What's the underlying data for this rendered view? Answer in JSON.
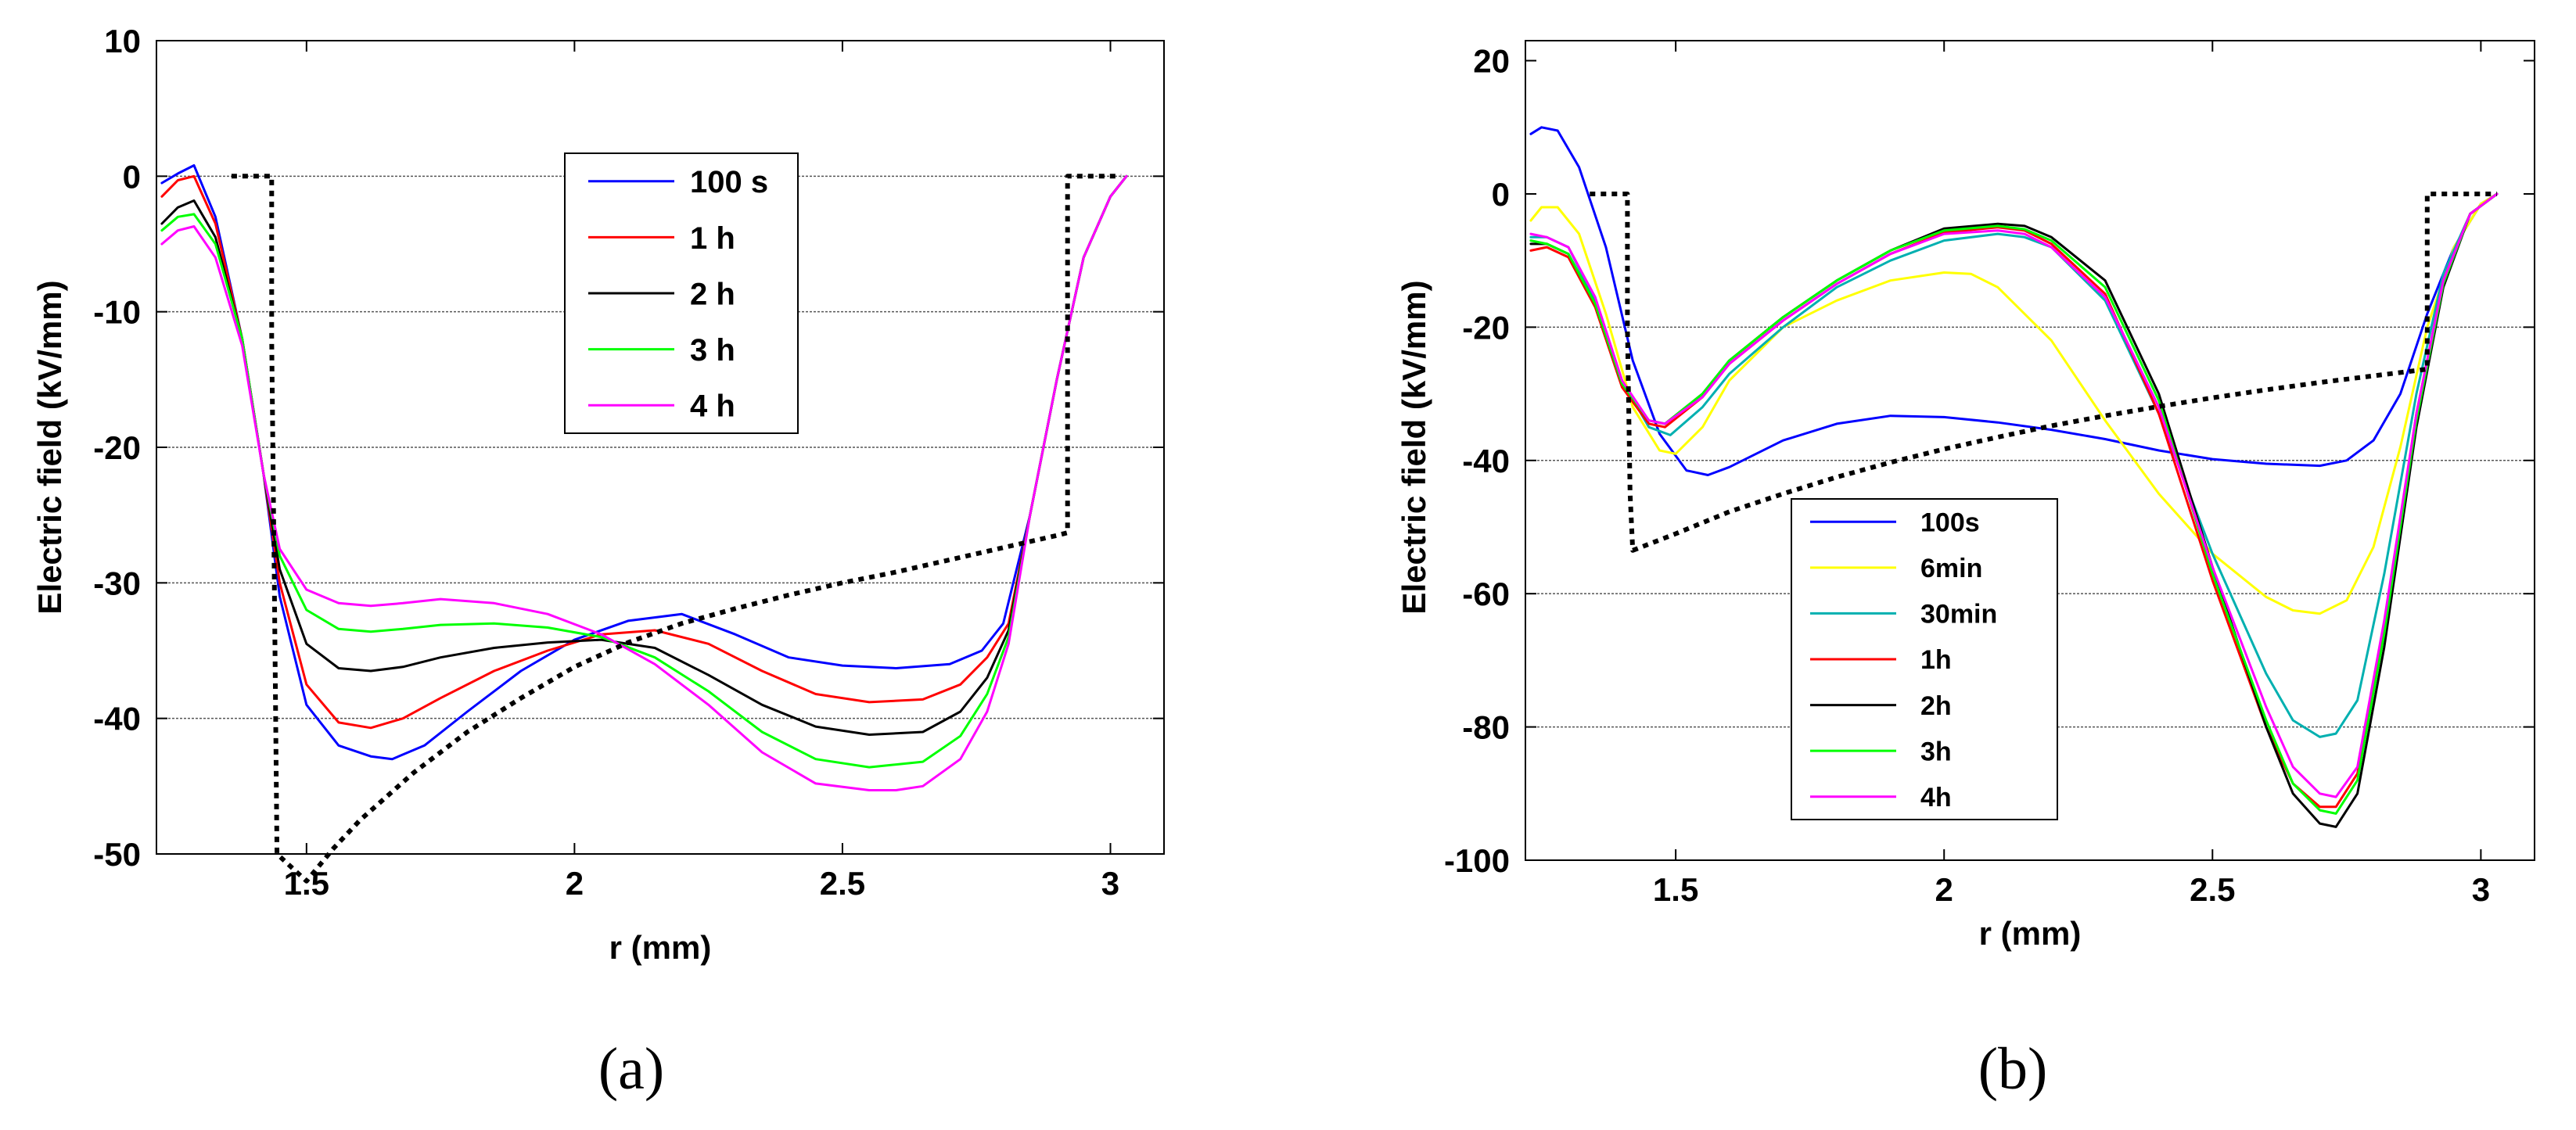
{
  "chart_data": [
    {
      "type": "line",
      "panel_label": "(a)",
      "xlabel": "r (mm)",
      "ylabel": "Electric field (kV/mm)",
      "xlim": [
        1.22,
        3.1
      ],
      "ylim": [
        -50,
        10
      ],
      "xticks": [
        1.5,
        2,
        2.5,
        3
      ],
      "xticklabels": [
        "1.5",
        "2",
        "2.5",
        "3"
      ],
      "yticks": [
        10,
        0,
        -10,
        -20,
        -30,
        -40,
        -50
      ],
      "yticklabels": [
        "10",
        "0",
        "-10",
        "-20",
        "-30",
        "-40",
        "-50"
      ],
      "gridlines_y": [
        0,
        -10,
        -20,
        -30,
        -40
      ],
      "legend_position": "top-center",
      "series": [
        {
          "name": "100 s",
          "color": "#0000ff",
          "x": [
            1.23,
            1.26,
            1.29,
            1.33,
            1.38,
            1.42,
            1.45,
            1.5,
            1.56,
            1.62,
            1.66,
            1.72,
            1.8,
            1.9,
            2.0,
            2.1,
            2.2,
            2.3,
            2.4,
            2.5,
            2.6,
            2.7,
            2.76,
            2.8,
            2.85,
            2.9,
            2.95,
            3.0,
            3.03
          ],
          "y": [
            -0.5,
            0.2,
            0.8,
            -3,
            -12,
            -22,
            -31,
            -39,
            -42,
            -42.8,
            -43,
            -42,
            -39.5,
            -36.5,
            -34.2,
            -32.8,
            -32.3,
            -33.8,
            -35.5,
            -36.1,
            -36.3,
            -36,
            -35,
            -33,
            -25,
            -15,
            -6,
            -1.5,
            0
          ]
        },
        {
          "name": "1 h",
          "color": "#ff0000",
          "x": [
            1.23,
            1.26,
            1.29,
            1.33,
            1.38,
            1.42,
            1.45,
            1.5,
            1.56,
            1.62,
            1.68,
            1.75,
            1.85,
            1.95,
            2.05,
            2.15,
            2.25,
            2.35,
            2.45,
            2.55,
            2.65,
            2.72,
            2.77,
            2.81,
            2.85,
            2.9,
            2.95,
            3.0,
            3.03
          ],
          "y": [
            -1.5,
            -0.3,
            0,
            -3.5,
            -12,
            -22,
            -30,
            -37.5,
            -40.3,
            -40.7,
            -40,
            -38.5,
            -36.5,
            -35,
            -33.8,
            -33.5,
            -34.5,
            -36.5,
            -38.2,
            -38.8,
            -38.6,
            -37.5,
            -35.5,
            -33,
            -25,
            -15,
            -6,
            -1.5,
            0
          ]
        },
        {
          "name": "2 h",
          "color": "#000000",
          "x": [
            1.23,
            1.26,
            1.29,
            1.33,
            1.38,
            1.42,
            1.45,
            1.5,
            1.56,
            1.62,
            1.68,
            1.75,
            1.85,
            1.95,
            2.05,
            2.15,
            2.25,
            2.35,
            2.45,
            2.55,
            2.65,
            2.72,
            2.77,
            2.81,
            2.85,
            2.9,
            2.95,
            3.0,
            3.03
          ],
          "y": [
            -3.5,
            -2.3,
            -1.8,
            -4.5,
            -12,
            -22,
            -29,
            -34.5,
            -36.3,
            -36.5,
            -36.2,
            -35.5,
            -34.8,
            -34.4,
            -34.2,
            -34.8,
            -36.8,
            -39,
            -40.6,
            -41.2,
            -41,
            -39.5,
            -37,
            -33.5,
            -25,
            -15,
            -6,
            -1.5,
            0
          ]
        },
        {
          "name": "3 h",
          "color": "#00ff00",
          "x": [
            1.23,
            1.26,
            1.29,
            1.33,
            1.38,
            1.42,
            1.45,
            1.5,
            1.56,
            1.62,
            1.68,
            1.75,
            1.85,
            1.95,
            2.05,
            2.15,
            2.25,
            2.35,
            2.45,
            2.55,
            2.65,
            2.72,
            2.77,
            2.81,
            2.85,
            2.9,
            2.95,
            3.0,
            3.03
          ],
          "y": [
            -4,
            -3,
            -2.8,
            -5,
            -12,
            -22,
            -28,
            -32,
            -33.4,
            -33.6,
            -33.4,
            -33.1,
            -33,
            -33.3,
            -34,
            -35.5,
            -38,
            -41,
            -43,
            -43.6,
            -43.2,
            -41.3,
            -38.2,
            -34,
            -25,
            -15,
            -6,
            -1.5,
            0
          ]
        },
        {
          "name": "4 h",
          "color": "#ff00ff",
          "x": [
            1.23,
            1.26,
            1.29,
            1.33,
            1.38,
            1.42,
            1.45,
            1.5,
            1.56,
            1.62,
            1.68,
            1.75,
            1.85,
            1.95,
            2.05,
            2.15,
            2.25,
            2.35,
            2.45,
            2.55,
            2.6,
            2.65,
            2.72,
            2.77,
            2.81,
            2.85,
            2.9,
            2.95,
            3.0,
            3.03
          ],
          "y": [
            -5,
            -4,
            -3.7,
            -6,
            -12.5,
            -22,
            -27.5,
            -30.5,
            -31.5,
            -31.7,
            -31.5,
            -31.2,
            -31.5,
            -32.3,
            -33.8,
            -36,
            -39,
            -42.5,
            -44.8,
            -45.3,
            -45.3,
            -45,
            -43,
            -39.5,
            -34.5,
            -25,
            -15,
            -6,
            -1.5,
            0
          ]
        },
        {
          "name": "",
          "color": "#000000",
          "dashed": true,
          "x": [
            1.36,
            1.435,
            1.435,
            1.44,
            1.445,
            1.5,
            1.55,
            1.6,
            1.7,
            1.8,
            1.9,
            2.0,
            2.1,
            2.2,
            2.3,
            2.4,
            2.5,
            2.6,
            2.7,
            2.8,
            2.9,
            2.92,
            2.92,
            2.96,
            3.02
          ],
          "y": [
            0,
            0,
            -12,
            -30,
            -50,
            -52,
            -49.6,
            -47.5,
            -44,
            -41,
            -38.5,
            -36.2,
            -34.4,
            -33,
            -31.9,
            -30.9,
            -30,
            -29.2,
            -28.3,
            -27.4,
            -26.5,
            -26.3,
            0,
            0,
            0
          ]
        }
      ]
    },
    {
      "type": "line",
      "panel_label": "(b)",
      "xlabel": "r (mm)",
      "ylabel": "Electric field (kV/mm)",
      "xlim": [
        1.22,
        3.1
      ],
      "ylim": [
        -100,
        23
      ],
      "xticks": [
        1.5,
        2,
        2.5,
        3
      ],
      "xticklabels": [
        "1.5",
        "2",
        "2.5",
        "3"
      ],
      "yticks": [
        20,
        0,
        -20,
        -40,
        -60,
        -80,
        -100
      ],
      "yticklabels": [
        "20",
        "0",
        "-20",
        "-40",
        "-60",
        "-80",
        "-100"
      ],
      "gridlines_y": [
        -20,
        -40,
        -60,
        -80
      ],
      "legend_position": "lower-left",
      "series": [
        {
          "name": "100s",
          "color": "#0000ff",
          "x": [
            1.23,
            1.25,
            1.28,
            1.32,
            1.37,
            1.42,
            1.47,
            1.52,
            1.56,
            1.6,
            1.7,
            1.8,
            1.9,
            2.0,
            2.1,
            2.2,
            2.3,
            2.4,
            2.5,
            2.6,
            2.7,
            2.75,
            2.8,
            2.85,
            2.9,
            2.95,
            3.0,
            3.03
          ],
          "y": [
            9,
            10,
            9.5,
            4,
            -8,
            -25,
            -36,
            -41.5,
            -42.2,
            -41,
            -37,
            -34.5,
            -33.3,
            -33.5,
            -34.3,
            -35.4,
            -36.8,
            -38.5,
            -39.8,
            -40.5,
            -40.8,
            -40,
            -37,
            -30,
            -18,
            -8,
            -1.5,
            0
          ]
        },
        {
          "name": "6min",
          "color": "#ffff00",
          "x": [
            1.23,
            1.25,
            1.28,
            1.32,
            1.37,
            1.42,
            1.47,
            1.5,
            1.55,
            1.6,
            1.7,
            1.8,
            1.9,
            2.0,
            2.05,
            2.1,
            2.2,
            2.3,
            2.4,
            2.5,
            2.6,
            2.65,
            2.7,
            2.75,
            2.8,
            2.85,
            2.9,
            2.95,
            3.0,
            3.03
          ],
          "y": [
            -4,
            -2,
            -2,
            -6,
            -18,
            -32,
            -38.5,
            -39,
            -35,
            -28,
            -20,
            -16,
            -13,
            -11.8,
            -12,
            -14,
            -22,
            -34,
            -45,
            -54,
            -60.5,
            -62.5,
            -63,
            -61,
            -53,
            -38,
            -20,
            -8,
            -1.5,
            0
          ]
        },
        {
          "name": "30min",
          "color": "#00b0b0",
          "x": [
            1.23,
            1.26,
            1.3,
            1.35,
            1.4,
            1.45,
            1.49,
            1.55,
            1.6,
            1.7,
            1.8,
            1.9,
            2.0,
            2.1,
            2.15,
            2.2,
            2.3,
            2.4,
            2.5,
            2.6,
            2.65,
            2.7,
            2.73,
            2.77,
            2.82,
            2.88,
            2.93,
            2.98,
            3.03
          ],
          "y": [
            -6.5,
            -6.5,
            -8,
            -16,
            -28,
            -35,
            -36.2,
            -32,
            -27,
            -20,
            -14,
            -10,
            -7,
            -6,
            -6.5,
            -8,
            -16,
            -33,
            -54,
            -72,
            -79,
            -81.5,
            -81,
            -76,
            -57,
            -30,
            -12,
            -3,
            0
          ]
        },
        {
          "name": "1h",
          "color": "#ff0000",
          "x": [
            1.23,
            1.26,
            1.3,
            1.35,
            1.4,
            1.45,
            1.48,
            1.55,
            1.6,
            1.7,
            1.8,
            1.9,
            2.0,
            2.1,
            2.15,
            2.2,
            2.3,
            2.4,
            2.5,
            2.6,
            2.65,
            2.7,
            2.73,
            2.77,
            2.82,
            2.88,
            2.93,
            2.98,
            3.03
          ],
          "y": [
            -8.5,
            -8,
            -9.5,
            -17,
            -29,
            -34.5,
            -35,
            -30.5,
            -25.5,
            -19,
            -13.5,
            -9,
            -5.8,
            -5,
            -5.5,
            -7.5,
            -15,
            -33,
            -58,
            -80,
            -88.5,
            -92,
            -92,
            -87,
            -65,
            -33,
            -13,
            -3,
            0
          ]
        },
        {
          "name": "2h",
          "color": "#000000",
          "x": [
            1.23,
            1.26,
            1.3,
            1.35,
            1.4,
            1.45,
            1.48,
            1.55,
            1.6,
            1.7,
            1.8,
            1.9,
            2.0,
            2.1,
            2.15,
            2.2,
            2.3,
            2.4,
            2.5,
            2.6,
            2.65,
            2.7,
            2.73,
            2.77,
            2.82,
            2.88,
            2.93,
            2.98,
            3.03
          ],
          "y": [
            -7.5,
            -7.5,
            -9,
            -16.5,
            -28.5,
            -34,
            -34.5,
            -30,
            -25,
            -18.5,
            -13,
            -8.5,
            -5.2,
            -4.5,
            -4.8,
            -6.5,
            -13,
            -30,
            -56,
            -80,
            -90,
            -94.5,
            -95,
            -90,
            -68,
            -35,
            -14,
            -3,
            0
          ]
        },
        {
          "name": "3h",
          "color": "#00ff00",
          "x": [
            1.23,
            1.26,
            1.3,
            1.35,
            1.4,
            1.45,
            1.48,
            1.55,
            1.6,
            1.7,
            1.8,
            1.9,
            2.0,
            2.1,
            2.15,
            2.2,
            2.3,
            2.4,
            2.5,
            2.6,
            2.65,
            2.7,
            2.73,
            2.77,
            2.82,
            2.88,
            2.93,
            2.98,
            3.03
          ],
          "y": [
            -7,
            -7.5,
            -9,
            -16.5,
            -28.5,
            -34,
            -34.5,
            -30,
            -25,
            -18.5,
            -13,
            -8.5,
            -5.5,
            -4.8,
            -5.3,
            -7,
            -14,
            -31,
            -57,
            -79,
            -88.5,
            -92.5,
            -93,
            -88,
            -66,
            -34,
            -13.5,
            -3,
            0
          ]
        },
        {
          "name": "4h",
          "color": "#ff00ff",
          "x": [
            1.23,
            1.26,
            1.3,
            1.35,
            1.4,
            1.45,
            1.48,
            1.55,
            1.6,
            1.7,
            1.8,
            1.9,
            2.0,
            2.1,
            2.15,
            2.2,
            2.3,
            2.4,
            2.5,
            2.6,
            2.65,
            2.7,
            2.73,
            2.77,
            2.82,
            2.88,
            2.93,
            2.98,
            3.03
          ],
          "y": [
            -6,
            -6.5,
            -8,
            -15.5,
            -28,
            -34,
            -34.5,
            -30.5,
            -25.5,
            -19,
            -13.5,
            -9,
            -6,
            -5.5,
            -6,
            -8,
            -15.5,
            -32,
            -56,
            -77,
            -86,
            -90,
            -90.5,
            -86,
            -64,
            -33,
            -13,
            -3,
            0
          ]
        },
        {
          "name": "",
          "color": "#000000",
          "dashed": true,
          "x": [
            1.34,
            1.41,
            1.41,
            1.415,
            1.42,
            1.5,
            1.6,
            1.7,
            1.8,
            1.9,
            2.0,
            2.1,
            2.2,
            2.3,
            2.4,
            2.5,
            2.6,
            2.7,
            2.8,
            2.9,
            2.9,
            2.95,
            3.03
          ],
          "y": [
            0,
            0,
            -20,
            -45,
            -53.5,
            -51,
            -47.7,
            -45,
            -42.5,
            -40.3,
            -38.3,
            -36.5,
            -34.8,
            -33.3,
            -31.9,
            -30.6,
            -29.4,
            -28.3,
            -27.3,
            -26.3,
            0,
            0,
            0
          ]
        }
      ]
    }
  ]
}
